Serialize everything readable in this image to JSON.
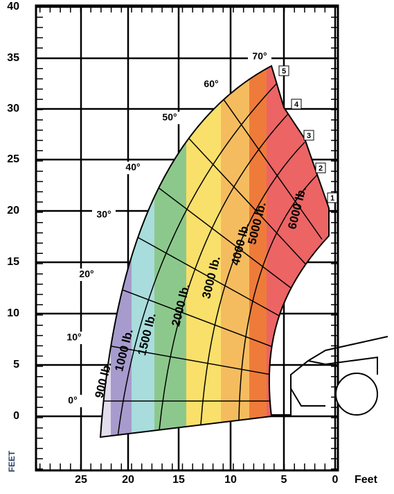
{
  "y_axis": {
    "ticks": [
      "40",
      "35",
      "30",
      "25",
      "20",
      "15",
      "10",
      "5",
      "0"
    ],
    "title": "FEET"
  },
  "x_axis": {
    "ticks": [
      "25",
      "20",
      "15",
      "10",
      "5",
      "0"
    ],
    "title": "Feet"
  },
  "angles": [
    "0°",
    "10°",
    "20°",
    "30°",
    "40°",
    "50°",
    "60°",
    "70°"
  ],
  "boom_positions": [
    "1",
    "2",
    "3",
    "4",
    "5"
  ],
  "load_zones": [
    "900 lb.",
    "1000 lb.",
    "1500 lb.",
    "2000 lb.",
    "3000 lb.",
    "4000 lb.",
    "5000 lb.",
    "6000 lb."
  ]
}
